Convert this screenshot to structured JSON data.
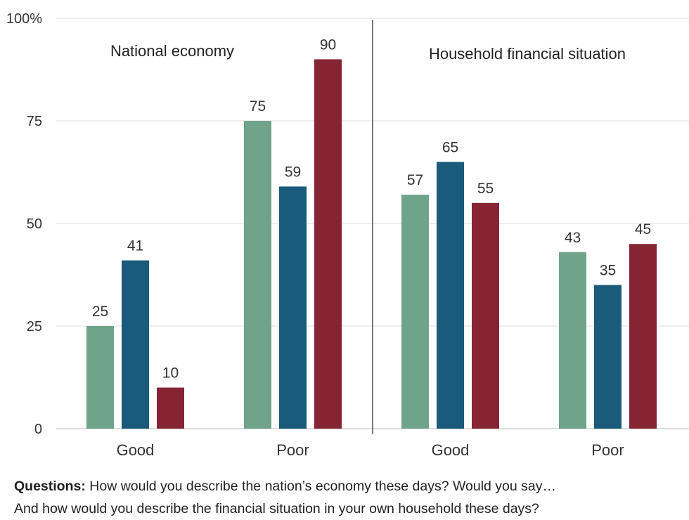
{
  "chart_data": {
    "type": "bar",
    "y_ticks": [
      "100%",
      "75",
      "50",
      "25",
      "0"
    ],
    "ylim": [
      0,
      100
    ],
    "grid": true,
    "panels": [
      {
        "title": "National economy",
        "categories": [
          "Good",
          "Poor"
        ],
        "series": [
          {
            "color": "#6fa38a",
            "values": [
              25,
              75
            ]
          },
          {
            "color": "#1a5a7a",
            "values": [
              41,
              59
            ]
          },
          {
            "color": "#862433",
            "values": [
              10,
              90
            ]
          }
        ]
      },
      {
        "title": "Household financial situation",
        "categories": [
          "Good",
          "Poor"
        ],
        "series": [
          {
            "color": "#6fa38a",
            "values": [
              57,
              43
            ]
          },
          {
            "color": "#1a5a7a",
            "values": [
              65,
              35
            ]
          },
          {
            "color": "#862433",
            "values": [
              55,
              45
            ]
          }
        ]
      }
    ]
  },
  "footnote": {
    "label": "Questions:",
    "line1": "How would you describe the nation’s economy these days? Would you say…",
    "line2": "And how would you describe the financial situation in your own household these days?"
  }
}
